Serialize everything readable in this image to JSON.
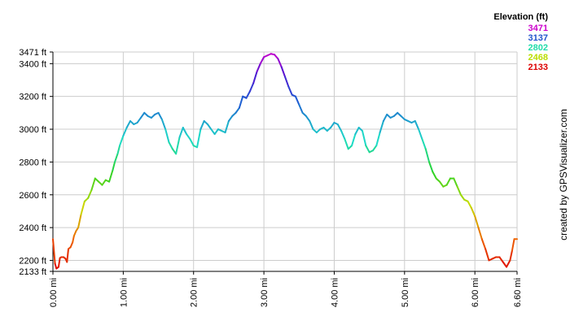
{
  "chart_data": {
    "type": "line",
    "xunit": "mi",
    "yunit": "ft",
    "xlim": [
      0,
      6.6
    ],
    "ylim": [
      2133,
      3471
    ],
    "grid": true,
    "x_ticks": [
      "0.00 mi",
      "1.00 mi",
      "2.00 mi",
      "3.00 mi",
      "4.00 mi",
      "5.00 mi",
      "6.00 mi",
      "6.60 mi"
    ],
    "x_tick_values": [
      0,
      1,
      2,
      3,
      4,
      5,
      6,
      6.6
    ],
    "y_ticks": [
      "3471 ft",
      "3400 ft",
      "3200 ft",
      "3000 ft",
      "2800 ft",
      "2600 ft",
      "2400 ft",
      "2200 ft",
      "2133 ft"
    ],
    "y_tick_values": [
      3471,
      3400,
      3200,
      3000,
      2800,
      2600,
      2400,
      2200,
      2133
    ],
    "legend": {
      "title": "Elevation (ft)",
      "position": "top-right",
      "entries": [
        {
          "label": "3471",
          "color": "#cc00cc"
        },
        {
          "label": "3137",
          "color": "#2255cc"
        },
        {
          "label": "2802",
          "color": "#22ddaa"
        },
        {
          "label": "2468",
          "color": "#bbdd00"
        },
        {
          "label": "2133",
          "color": "#dd0000"
        }
      ]
    },
    "credit": "created by GPSVisualizer.com",
    "series": [
      {
        "x": [
          0.0,
          0.03,
          0.05,
          0.08,
          0.1,
          0.12,
          0.15,
          0.18,
          0.2,
          0.22,
          0.25,
          0.28,
          0.3,
          0.33,
          0.36,
          0.4,
          0.45,
          0.5,
          0.55,
          0.6,
          0.65,
          0.7,
          0.75,
          0.8,
          0.85,
          0.88,
          0.92,
          0.95,
          1.0,
          1.05,
          1.1,
          1.15,
          1.2,
          1.25,
          1.3,
          1.35,
          1.4,
          1.45,
          1.5,
          1.55,
          1.6,
          1.65,
          1.7,
          1.75,
          1.8,
          1.85,
          1.9,
          1.95,
          2.0,
          2.05,
          2.1,
          2.15,
          2.2,
          2.25,
          2.3,
          2.35,
          2.4,
          2.45,
          2.5,
          2.55,
          2.6,
          2.65,
          2.7,
          2.75,
          2.8,
          2.85,
          2.9,
          2.95,
          3.0,
          3.05,
          3.1,
          3.15,
          3.2,
          3.25,
          3.3,
          3.35,
          3.4,
          3.45,
          3.5,
          3.55,
          3.6,
          3.65,
          3.7,
          3.75,
          3.8,
          3.85,
          3.9,
          3.95,
          4.0,
          4.05,
          4.1,
          4.15,
          4.2,
          4.25,
          4.3,
          4.35,
          4.4,
          4.45,
          4.5,
          4.55,
          4.6,
          4.65,
          4.7,
          4.75,
          4.8,
          4.85,
          4.9,
          4.95,
          5.0,
          5.05,
          5.1,
          5.15,
          5.2,
          5.25,
          5.3,
          5.35,
          5.4,
          5.45,
          5.5,
          5.55,
          5.6,
          5.65,
          5.7,
          5.75,
          5.8,
          5.85,
          5.9,
          5.95,
          6.0,
          6.05,
          6.1,
          6.15,
          6.2,
          6.25,
          6.3,
          6.35,
          6.4,
          6.45,
          6.5,
          6.53,
          6.56,
          6.6
        ],
        "y": [
          2330,
          2180,
          2150,
          2160,
          2215,
          2220,
          2220,
          2210,
          2190,
          2270,
          2280,
          2310,
          2350,
          2380,
          2400,
          2480,
          2560,
          2580,
          2630,
          2700,
          2680,
          2660,
          2690,
          2680,
          2750,
          2800,
          2850,
          2900,
          2960,
          3010,
          3050,
          3030,
          3040,
          3070,
          3100,
          3080,
          3070,
          3090,
          3100,
          3060,
          3000,
          2920,
          2880,
          2850,
          2950,
          3010,
          2970,
          2940,
          2900,
          2890,
          3000,
          3050,
          3030,
          3000,
          2970,
          3000,
          2990,
          2980,
          3050,
          3080,
          3100,
          3130,
          3200,
          3190,
          3230,
          3280,
          3350,
          3400,
          3440,
          3450,
          3460,
          3455,
          3430,
          3380,
          3320,
          3260,
          3210,
          3200,
          3150,
          3100,
          3080,
          3050,
          3000,
          2980,
          3000,
          3010,
          2990,
          3010,
          3040,
          3030,
          2990,
          2940,
          2880,
          2900,
          2970,
          3010,
          2990,
          2900,
          2860,
          2870,
          2900,
          2980,
          3050,
          3090,
          3070,
          3080,
          3100,
          3080,
          3060,
          3050,
          3040,
          3050,
          3000,
          2940,
          2880,
          2800,
          2740,
          2700,
          2680,
          2650,
          2660,
          2700,
          2700,
          2650,
          2600,
          2570,
          2560,
          2520,
          2470,
          2400,
          2330,
          2270,
          2200,
          2210,
          2220,
          2220,
          2190,
          2160,
          2200,
          2260,
          2330,
          2330
        ]
      }
    ]
  }
}
